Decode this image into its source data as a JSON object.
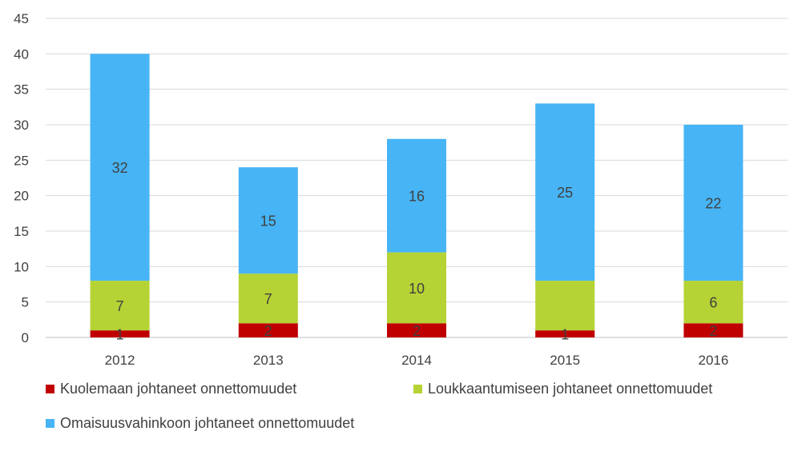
{
  "chart_data": {
    "type": "bar",
    "stacked": true,
    "categories": [
      "2012",
      "2013",
      "2014",
      "2015",
      "2016"
    ],
    "series": [
      {
        "name": "Kuolemaan johtaneet onnettomuudet",
        "color": "#c00000",
        "values": [
          1,
          2,
          2,
          1,
          2
        ],
        "labels": [
          "1",
          "2",
          "2",
          "1",
          "2"
        ]
      },
      {
        "name": "Loukkaantumiseen johtaneet onnettomuudet",
        "color": "#b5d334",
        "values": [
          7,
          7,
          10,
          7,
          6
        ],
        "labels": [
          "7",
          "7",
          "10",
          "",
          "6"
        ]
      },
      {
        "name": "Omaisuusvahinkoon johtaneet onnettomuudet",
        "color": "#47b4f5",
        "values": [
          32,
          15,
          16,
          25,
          22
        ],
        "labels": [
          "32",
          "15",
          "16",
          "25",
          "22"
        ]
      }
    ],
    "ylim": [
      0,
      45
    ],
    "yticks": [
      0,
      5,
      10,
      15,
      20,
      25,
      30,
      35,
      40,
      45
    ],
    "grid": true,
    "legend": "bottom",
    "gridColor": "#d9d9d9",
    "axisColor": "#bfbfbf",
    "title": "",
    "xlabel": "",
    "ylabel": ""
  }
}
